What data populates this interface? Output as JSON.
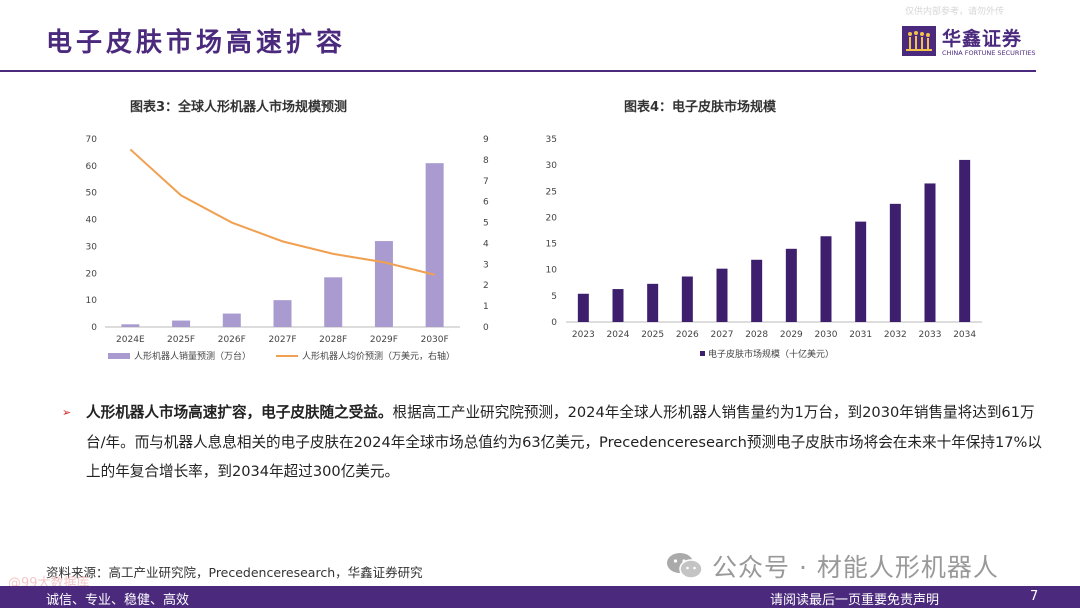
{
  "header": {
    "title": "电子皮肤市场高速扩容",
    "watermark": "仅供内部参考，请勿外传"
  },
  "brand": {
    "name_cn": "华鑫证券",
    "name_en": "CHINA FORTUNE SECURITIES",
    "color": "#4b2a7e"
  },
  "charts": {
    "chart3_title": "图表3：全球人形机器人市场规模预测",
    "chart4_title": "图表4：电子皮肤市场规模"
  },
  "chart_data": [
    {
      "type": "bar",
      "title": "图表3：全球人形机器人市场规模预测",
      "categories": [
        "2024E",
        "2025F",
        "2026F",
        "2027F",
        "2028F",
        "2029F",
        "2030F"
      ],
      "series": [
        {
          "name": "人形机器人销量预测（万台）",
          "type": "bar",
          "axis": "left",
          "color": "#a99bd0",
          "values": [
            1,
            2.4,
            5,
            10,
            18.5,
            32,
            61
          ]
        },
        {
          "name": "人形机器人均价预测（万美元，右轴）",
          "type": "line",
          "axis": "right",
          "color": "#f0a050",
          "values": [
            8.5,
            6.3,
            5.0,
            4.1,
            3.5,
            3.1,
            2.5
          ]
        }
      ],
      "ylim": [
        0,
        70
      ],
      "yticks": [
        0,
        10,
        20,
        30,
        40,
        50,
        60,
        70
      ],
      "y2lim": [
        0,
        9
      ],
      "y2ticks": [
        0,
        1,
        2,
        3,
        4,
        5,
        6,
        7,
        8,
        9
      ],
      "legend": "bottom"
    },
    {
      "type": "bar",
      "title": "图表4：电子皮肤市场规模",
      "categories": [
        "2023",
        "2024",
        "2025",
        "2026",
        "2027",
        "2028",
        "2029",
        "2030",
        "2031",
        "2032",
        "2033",
        "2034"
      ],
      "series": [
        {
          "name": "电子皮肤市场规模（十亿美元）",
          "color": "#3e1f6e",
          "values": [
            5.4,
            6.3,
            7.3,
            8.7,
            10.2,
            11.9,
            14.0,
            16.4,
            19.2,
            22.6,
            26.5,
            31.0
          ]
        }
      ],
      "ylim": [
        0,
        35
      ],
      "yticks": [
        0,
        5,
        10,
        15,
        20,
        25,
        30,
        35
      ],
      "legend": "bottom"
    }
  ],
  "bullet": {
    "arrow": "➢",
    "lead": "人形机器人市场高速扩容，电子皮肤随之受益。",
    "body": "根据高工产业研究院预测，2024年全球人形机器人销售量约为1万台，到2030年销售量将达到61万台/年。而与机器人息息相关的电子皮肤在2024年全球市场总值约为63亿美元，Precedenceresearch预测电子皮肤市场将会在未来十年保持17%以上的年复合增长率，到2034年超过300亿美元。"
  },
  "source": "资料来源：高工产业研究院，Precedenceresearch，华鑫证券研究",
  "wechat": "公众号 · 材能人形机器人",
  "stamp": "@99大数据库",
  "footer": {
    "left": "诚信、专业、稳健、高效",
    "right": "请阅读最后一页重要免责声明",
    "page": "7"
  }
}
